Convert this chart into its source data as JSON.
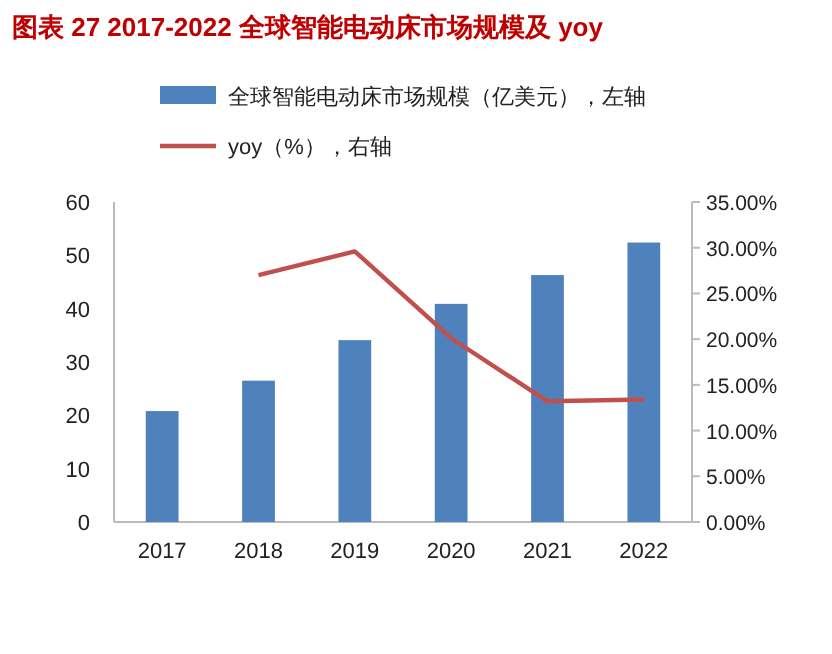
{
  "chart_data": {
    "type": "bar",
    "title": "图表 27 2017-2022 全球智能电动床市场规模及 yoy",
    "categories": [
      "2017",
      "2018",
      "2019",
      "2020",
      "2021",
      "2022"
    ],
    "series": [
      {
        "name": "全球智能电动床市场规模（亿美元），左轴",
        "color": "#4f81bd",
        "values": [
          20.8,
          26.5,
          34.1,
          40.9,
          46.3,
          52.4
        ]
      },
      {
        "name": "yoy（%），右轴",
        "type": "line",
        "axis": "y2",
        "color": "#c0504d",
        "values": [
          null,
          27.0,
          29.6,
          20.1,
          13.2,
          13.4
        ]
      }
    ],
    "ylim": [
      0,
      60
    ],
    "yticks": [
      0,
      10,
      20,
      30,
      40,
      50,
      60
    ],
    "y2lim": [
      0,
      35
    ],
    "y2ticks": [
      {
        "value": 0,
        "label": "0.00%"
      },
      {
        "value": 5,
        "label": "5.00%"
      },
      {
        "value": 10,
        "label": "10.00%"
      },
      {
        "value": 15,
        "label": "15.00%"
      },
      {
        "value": 20,
        "label": "20.00%"
      },
      {
        "value": 25,
        "label": "25.00%"
      },
      {
        "value": 30,
        "label": "30.00%"
      },
      {
        "value": 35,
        "label": "35.00%"
      }
    ],
    "legend": "top",
    "grid": false
  }
}
